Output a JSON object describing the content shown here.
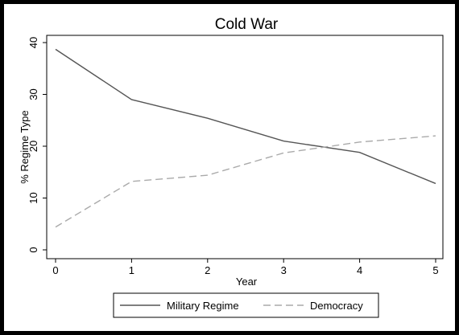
{
  "chart_data": {
    "type": "line",
    "title": "Cold War",
    "xlabel": "Year",
    "ylabel": "% Regime Type",
    "x": [
      0,
      1,
      2,
      3,
      4,
      5
    ],
    "xlim": [
      0,
      5
    ],
    "ylim": [
      0,
      40
    ],
    "xticks": [
      "0",
      "1",
      "2",
      "3",
      "4",
      "5"
    ],
    "yticks": [
      "0",
      "10",
      "20",
      "30",
      "40"
    ],
    "grid": false,
    "legend_position": "bottom",
    "series": [
      {
        "name": "Military Regime",
        "values": [
          38.7,
          29.0,
          25.4,
          21.0,
          18.8,
          12.8
        ],
        "color": "#555555",
        "dash": "solid"
      },
      {
        "name": "Democracy",
        "values": [
          4.4,
          13.2,
          14.4,
          18.7,
          20.8,
          22.0
        ],
        "color": "#aaaaaa",
        "dash": "dashed"
      }
    ]
  }
}
